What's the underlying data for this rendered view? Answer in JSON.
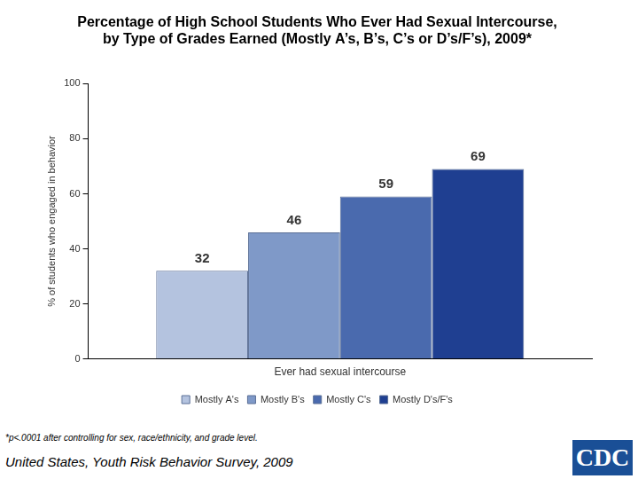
{
  "chart_data": {
    "type": "bar",
    "title": [
      "Percentage of High School Students Who Ever Had Sexual Intercourse,",
      "by Type of Grades Earned (Mostly A’s, B’s, C’s or D’s/F’s), 2009*"
    ],
    "y_label": "% of students who engaged in behavior",
    "categories": [
      "Ever had sexual intercourse"
    ],
    "series": [
      {
        "name": "Mostly A's",
        "color": "#b4c3df",
        "values": [
          32
        ]
      },
      {
        "name": "Mostly B's",
        "color": "#7f99c8",
        "values": [
          46
        ]
      },
      {
        "name": "Mostly C's",
        "color": "#4a6aae",
        "values": [
          59
        ]
      },
      {
        "name": "Mostly D's/F's",
        "color": "#1f3f91",
        "values": [
          69
        ]
      }
    ],
    "ylim": [
      0,
      100
    ],
    "yticks": [
      0,
      20,
      40,
      60,
      80,
      100
    ],
    "grid": false,
    "legend": "bottom",
    "data_labels": true,
    "footnote": "*p<.0001 after controlling for sex, race/ethnicity, and grade level.",
    "source": "United States, Youth Risk Behavior Survey, 2009",
    "logo": "CDC"
  }
}
